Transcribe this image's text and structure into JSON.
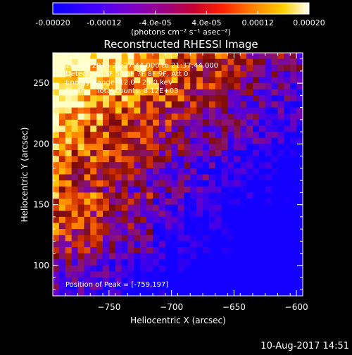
{
  "colorbar": {
    "tick_labels": [
      "-0.00020",
      "-0.00012",
      "-4.0e-05",
      "4.0e-05",
      "0.00012",
      "0.00020"
    ],
    "tick_values": [
      -0.0002,
      -0.00012,
      -4e-05,
      4e-05,
      0.00012,
      0.0002
    ],
    "range": [
      -0.0002,
      0.0002
    ],
    "units": "(photons cm⁻² s⁻¹ asec⁻²)"
  },
  "image": {
    "title": "Reconstructed RHESSI Image",
    "time_range": "26-Feb-2015 21:27:44.000 to 21:37:44.000",
    "detectors": "Detectors: 3F 5F 6F 7F 8F 9F, Att 0",
    "energy_range": "Energy Range: 12.0 - 25.0 keV",
    "algorithm": "Clean     Total counts: 8.12E+03",
    "peak": "Position of Peak = [-759,197]"
  },
  "footer": {
    "timestamp": "10-Aug-2017 14:51"
  },
  "chart_data": {
    "type": "heatmap",
    "title": "Reconstructed RHESSI Image",
    "xlabel": "Heliocentric X (arcsec)",
    "ylabel": "Heliocentric Y (arcsec)",
    "xlim": [
      -795,
      -595
    ],
    "ylim": [
      75,
      275
    ],
    "x_ticks": [
      -750,
      -700,
      -650,
      -600
    ],
    "y_ticks": [
      100,
      150,
      200,
      250
    ],
    "x_tick_labels": [
      "-750",
      "-700",
      "-650",
      "-600"
    ],
    "y_tick_labels": [
      "100",
      "150",
      "200",
      "250"
    ],
    "peak": [
      -759,
      197
    ],
    "colormap": [
      "#1400ff",
      "#6a00c8",
      "#8a1a6e",
      "#b42800",
      "#ff5a00",
      "#ffc000",
      "#ffff80",
      "#ffffff"
    ],
    "value_range": [
      -0.0002,
      0.0002
    ]
  }
}
